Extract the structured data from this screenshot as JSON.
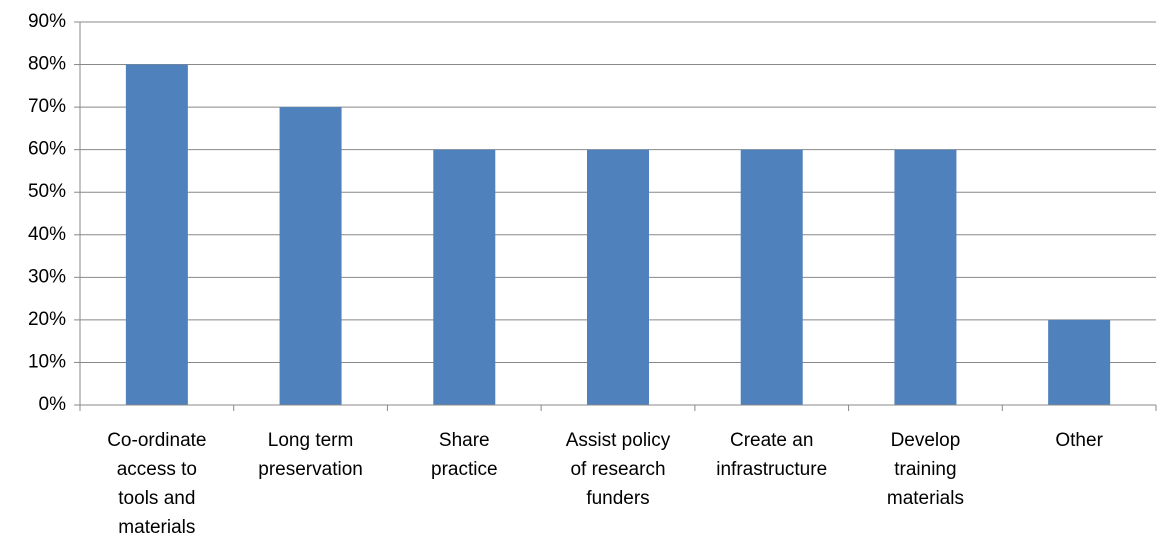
{
  "chart_data": {
    "type": "bar",
    "categories": [
      "Co-ordinate\naccess to\ntools and\nmaterials",
      "Long term\npreservation",
      "Share\npractice",
      "Assist policy\nof research\nfunders",
      "Create an\ninfrastructure",
      "Develop\ntraining\nmaterials",
      "Other"
    ],
    "values": [
      80,
      70,
      60,
      60,
      60,
      60,
      20
    ],
    "color": "#4f81bd",
    "ylim": [
      0,
      90
    ],
    "yticks": [
      {
        "value": 0,
        "label": "0%"
      },
      {
        "value": 10,
        "label": "10%"
      },
      {
        "value": 20,
        "label": "20%"
      },
      {
        "value": 30,
        "label": "30%"
      },
      {
        "value": 40,
        "label": "40%"
      },
      {
        "value": 50,
        "label": "50%"
      },
      {
        "value": 60,
        "label": "60%"
      },
      {
        "value": 70,
        "label": "70%"
      },
      {
        "value": 80,
        "label": "80%"
      },
      {
        "value": 90,
        "label": "90%"
      }
    ],
    "grid": true
  }
}
